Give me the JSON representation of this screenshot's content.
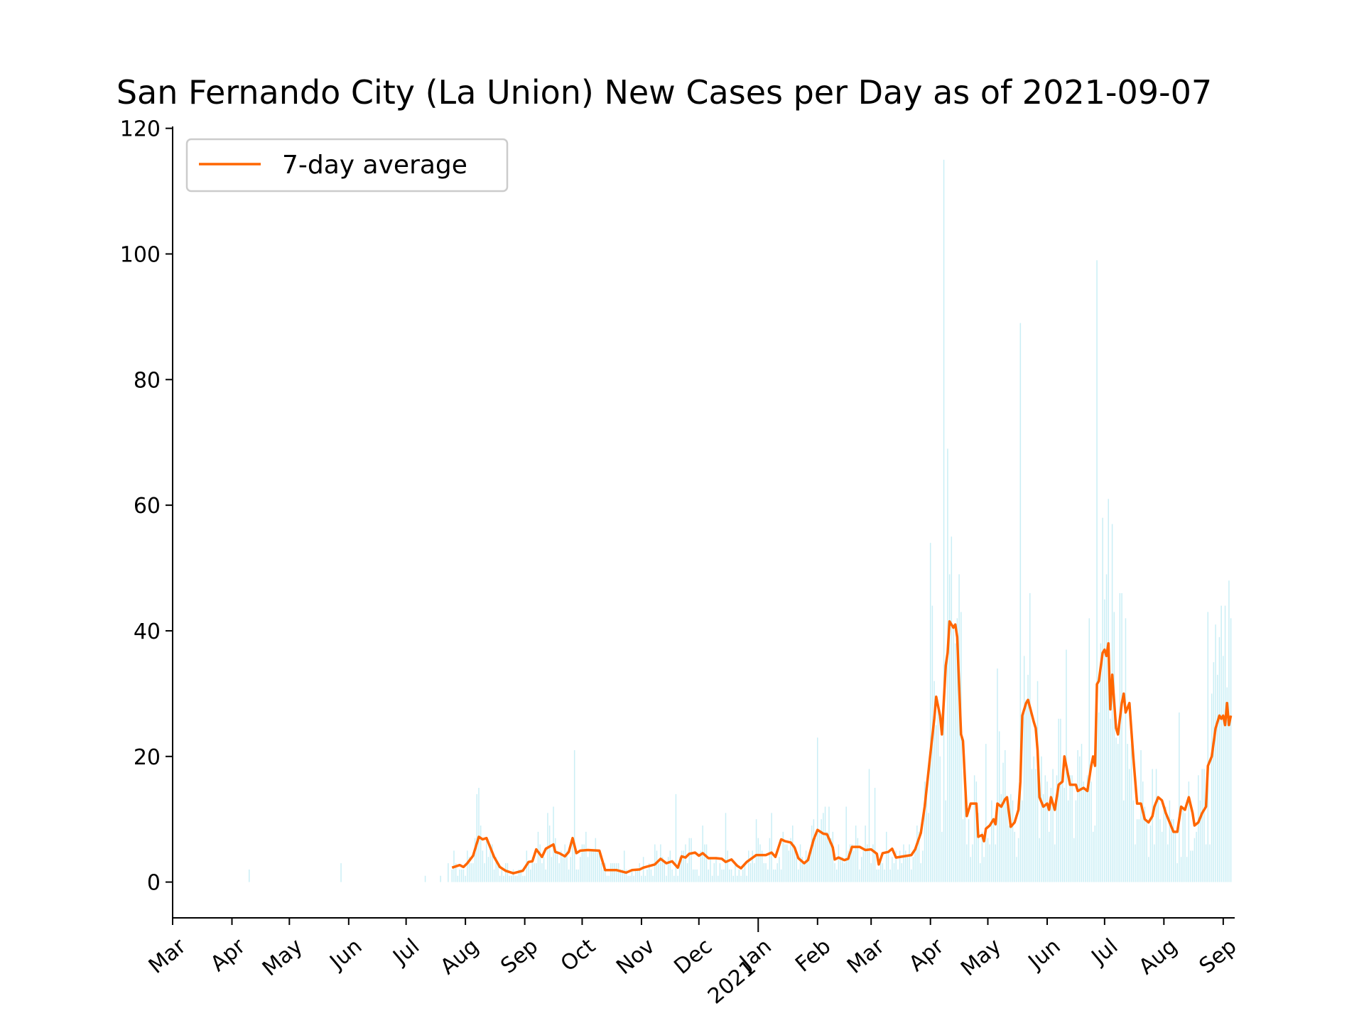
{
  "chart_data": {
    "type": "bar",
    "title": "San Fernando City (La Union) New Cases per Day as of 2021-09-07",
    "xlabel": "",
    "ylabel": "",
    "ylim": [
      -5.7,
      120.3
    ],
    "xlim": [
      "2020-03-01",
      "2021-09-07"
    ],
    "grid": false,
    "legend_position": "top-left",
    "y_ticks": [
      0,
      20,
      40,
      60,
      80,
      100,
      120
    ],
    "x_ticks": [
      {
        "date": "2020-03-01",
        "label": "Mar"
      },
      {
        "date": "2020-04-01",
        "label": "Apr"
      },
      {
        "date": "2020-05-01",
        "label": "May"
      },
      {
        "date": "2020-06-01",
        "label": "Jun"
      },
      {
        "date": "2020-07-01",
        "label": "Jul"
      },
      {
        "date": "2020-08-01",
        "label": "Aug"
      },
      {
        "date": "2020-09-01",
        "label": "Sep"
      },
      {
        "date": "2020-10-01",
        "label": "Oct"
      },
      {
        "date": "2020-11-01",
        "label": "Nov"
      },
      {
        "date": "2020-12-01",
        "label": "Dec"
      },
      {
        "date": "2021-01-01",
        "label": "Jan\n2021"
      },
      {
        "date": "2021-02-01",
        "label": "Feb"
      },
      {
        "date": "2021-03-01",
        "label": "Mar"
      },
      {
        "date": "2021-04-01",
        "label": "Apr"
      },
      {
        "date": "2021-05-01",
        "label": "May"
      },
      {
        "date": "2021-06-01",
        "label": "Jun"
      },
      {
        "date": "2021-07-01",
        "label": "Jul"
      },
      {
        "date": "2021-08-01",
        "label": "Aug"
      },
      {
        "date": "2021-09-01",
        "label": "Sep"
      }
    ],
    "colors": {
      "bars": "#c9eef5",
      "average": "#ff6600",
      "axis": "#000000",
      "legend_border": "#cccccc"
    },
    "series": [
      {
        "name": "7-day average",
        "type": "line",
        "points": [
          [
            "2020-07-25",
            2.3
          ],
          [
            "2020-07-29",
            2.7
          ],
          [
            "2020-07-31",
            2.4
          ],
          [
            "2020-08-02",
            3.0
          ],
          [
            "2020-08-05",
            4.2
          ],
          [
            "2020-08-08",
            7.2
          ],
          [
            "2020-08-10",
            6.8
          ],
          [
            "2020-08-12",
            7.0
          ],
          [
            "2020-08-14",
            5.5
          ],
          [
            "2020-08-16",
            4.0
          ],
          [
            "2020-08-19",
            2.4
          ],
          [
            "2020-08-22",
            1.8
          ],
          [
            "2020-08-26",
            1.4
          ],
          [
            "2020-08-31",
            1.8
          ],
          [
            "2020-09-03",
            3.2
          ],
          [
            "2020-09-05",
            3.3
          ],
          [
            "2020-09-07",
            5.2
          ],
          [
            "2020-09-10",
            4.0
          ],
          [
            "2020-09-12",
            5.3
          ],
          [
            "2020-09-16",
            6.0
          ],
          [
            "2020-09-17",
            4.8
          ],
          [
            "2020-09-19",
            4.6
          ],
          [
            "2020-09-22",
            4.1
          ],
          [
            "2020-09-24",
            4.8
          ],
          [
            "2020-09-26",
            7.0
          ],
          [
            "2020-09-28",
            4.6
          ],
          [
            "2020-09-30",
            5.0
          ],
          [
            "2020-10-04",
            5.1
          ],
          [
            "2020-10-10",
            5.0
          ],
          [
            "2020-10-13",
            1.9
          ],
          [
            "2020-10-19",
            1.9
          ],
          [
            "2020-10-24",
            1.5
          ],
          [
            "2020-10-27",
            1.9
          ],
          [
            "2020-10-31",
            2.0
          ],
          [
            "2020-11-02",
            2.3
          ],
          [
            "2020-11-08",
            2.8
          ],
          [
            "2020-11-11",
            3.7
          ],
          [
            "2020-11-14",
            3.0
          ],
          [
            "2020-11-17",
            3.3
          ],
          [
            "2020-11-20",
            2.3
          ],
          [
            "2020-11-22",
            4.1
          ],
          [
            "2020-11-24",
            3.9
          ],
          [
            "2020-11-26",
            4.5
          ],
          [
            "2020-11-29",
            4.7
          ],
          [
            "2020-12-01",
            4.2
          ],
          [
            "2020-12-03",
            4.6
          ],
          [
            "2020-12-06",
            3.8
          ],
          [
            "2020-12-10",
            3.8
          ],
          [
            "2020-12-13",
            3.7
          ],
          [
            "2020-12-15",
            3.2
          ],
          [
            "2020-12-18",
            3.6
          ],
          [
            "2020-12-21",
            2.6
          ],
          [
            "2020-12-23",
            2.2
          ],
          [
            "2020-12-26",
            3.2
          ],
          [
            "2020-12-31",
            4.3
          ],
          [
            "2021-01-05",
            4.3
          ],
          [
            "2021-01-08",
            4.7
          ],
          [
            "2021-01-10",
            4.0
          ],
          [
            "2021-01-13",
            6.8
          ],
          [
            "2021-01-15",
            6.5
          ],
          [
            "2021-01-18",
            6.3
          ],
          [
            "2021-01-20",
            5.5
          ],
          [
            "2021-01-22",
            3.8
          ],
          [
            "2021-01-25",
            3.0
          ],
          [
            "2021-01-27",
            3.5
          ],
          [
            "2021-01-30",
            6.8
          ],
          [
            "2021-02-01",
            8.3
          ],
          [
            "2021-02-04",
            7.7
          ],
          [
            "2021-02-06",
            7.6
          ],
          [
            "2021-02-09",
            5.5
          ],
          [
            "2021-02-10",
            3.6
          ],
          [
            "2021-02-12",
            3.9
          ],
          [
            "2021-02-15",
            3.5
          ],
          [
            "2021-02-17",
            3.7
          ],
          [
            "2021-02-19",
            5.6
          ],
          [
            "2021-02-23",
            5.6
          ],
          [
            "2021-02-26",
            5.1
          ],
          [
            "2021-03-01",
            5.2
          ],
          [
            "2021-03-04",
            4.5
          ],
          [
            "2021-03-05",
            2.8
          ],
          [
            "2021-03-07",
            4.6
          ],
          [
            "2021-03-10",
            4.8
          ],
          [
            "2021-03-12",
            5.3
          ],
          [
            "2021-03-14",
            3.9
          ],
          [
            "2021-03-18",
            4.1
          ],
          [
            "2021-03-22",
            4.3
          ],
          [
            "2021-03-24",
            5.2
          ],
          [
            "2021-03-27",
            7.8
          ],
          [
            "2021-03-29",
            12.0
          ],
          [
            "2021-04-01",
            20.5
          ],
          [
            "2021-04-03",
            26.0
          ],
          [
            "2021-04-04",
            29.5
          ],
          [
            "2021-04-06",
            26.5
          ],
          [
            "2021-04-07",
            23.5
          ],
          [
            "2021-04-09",
            34.5
          ],
          [
            "2021-04-10",
            36.5
          ],
          [
            "2021-04-11",
            41.5
          ],
          [
            "2021-04-13",
            40.5
          ],
          [
            "2021-04-14",
            41.0
          ],
          [
            "2021-04-15",
            39.0
          ],
          [
            "2021-04-17",
            23.5
          ],
          [
            "2021-04-18",
            22.5
          ],
          [
            "2021-04-20",
            10.5
          ],
          [
            "2021-04-21",
            11.5
          ],
          [
            "2021-04-22",
            12.5
          ],
          [
            "2021-04-25",
            12.5
          ],
          [
            "2021-04-26",
            7.2
          ],
          [
            "2021-04-28",
            7.5
          ],
          [
            "2021-04-29",
            6.5
          ],
          [
            "2021-04-30",
            8.5
          ],
          [
            "2021-05-02",
            9.0
          ],
          [
            "2021-05-04",
            10.0
          ],
          [
            "2021-05-05",
            9.2
          ],
          [
            "2021-05-06",
            12.5
          ],
          [
            "2021-05-08",
            12.0
          ],
          [
            "2021-05-10",
            13.2
          ],
          [
            "2021-05-11",
            13.5
          ],
          [
            "2021-05-13",
            8.8
          ],
          [
            "2021-05-15",
            9.5
          ],
          [
            "2021-05-17",
            11.5
          ],
          [
            "2021-05-18",
            16.0
          ],
          [
            "2021-05-19",
            26.5
          ],
          [
            "2021-05-21",
            28.5
          ],
          [
            "2021-05-22",
            29.0
          ],
          [
            "2021-05-25",
            25.5
          ],
          [
            "2021-05-26",
            24.5
          ],
          [
            "2021-05-27",
            21.0
          ],
          [
            "2021-05-28",
            13.5
          ],
          [
            "2021-05-30",
            12.0
          ],
          [
            "2021-06-01",
            12.5
          ],
          [
            "2021-06-02",
            11.5
          ],
          [
            "2021-06-03",
            13.5
          ],
          [
            "2021-06-05",
            11.5
          ],
          [
            "2021-06-07",
            15.5
          ],
          [
            "2021-06-09",
            16.0
          ],
          [
            "2021-06-10",
            20.0
          ],
          [
            "2021-06-12",
            17.0
          ],
          [
            "2021-06-13",
            15.5
          ],
          [
            "2021-06-16",
            15.5
          ],
          [
            "2021-06-17",
            14.5
          ],
          [
            "2021-06-20",
            15.0
          ],
          [
            "2021-06-22",
            14.5
          ],
          [
            "2021-06-24",
            18.5
          ],
          [
            "2021-06-25",
            20.0
          ],
          [
            "2021-06-26",
            18.5
          ],
          [
            "2021-06-27",
            31.5
          ],
          [
            "2021-06-28",
            32.0
          ],
          [
            "2021-06-30",
            36.5
          ],
          [
            "2021-07-01",
            37.0
          ],
          [
            "2021-07-02",
            36.0
          ],
          [
            "2021-07-03",
            38.0
          ],
          [
            "2021-07-04",
            27.5
          ],
          [
            "2021-07-05",
            33.0
          ],
          [
            "2021-07-07",
            24.5
          ],
          [
            "2021-07-08",
            23.5
          ],
          [
            "2021-07-10",
            28.5
          ],
          [
            "2021-07-11",
            30.0
          ],
          [
            "2021-07-12",
            27.0
          ],
          [
            "2021-07-14",
            28.5
          ],
          [
            "2021-07-16",
            20.0
          ],
          [
            "2021-07-18",
            12.5
          ],
          [
            "2021-07-20",
            12.5
          ],
          [
            "2021-07-22",
            10.0
          ],
          [
            "2021-07-24",
            9.5
          ],
          [
            "2021-07-26",
            10.5
          ],
          [
            "2021-07-27",
            12.0
          ],
          [
            "2021-07-29",
            13.5
          ],
          [
            "2021-07-31",
            13.0
          ],
          [
            "2021-08-02",
            11.0
          ],
          [
            "2021-08-04",
            9.5
          ],
          [
            "2021-08-06",
            8.0
          ],
          [
            "2021-08-08",
            8.0
          ],
          [
            "2021-08-10",
            12.0
          ],
          [
            "2021-08-12",
            11.5
          ],
          [
            "2021-08-14",
            13.5
          ],
          [
            "2021-08-16",
            11.0
          ],
          [
            "2021-08-17",
            9.0
          ],
          [
            "2021-08-19",
            9.5
          ],
          [
            "2021-08-21",
            11.0
          ],
          [
            "2021-08-23",
            12.0
          ],
          [
            "2021-08-24",
            18.5
          ],
          [
            "2021-08-26",
            20.0
          ],
          [
            "2021-08-28",
            24.5
          ],
          [
            "2021-08-30",
            26.5
          ],
          [
            "2021-08-31",
            26.0
          ],
          [
            "2021-09-01",
            26.5
          ],
          [
            "2021-09-02",
            25.0
          ],
          [
            "2021-09-03",
            28.5
          ],
          [
            "2021-09-04",
            25.0
          ],
          [
            "2021-09-05",
            26.5
          ]
        ]
      },
      {
        "name": "",
        "type": "bar",
        "note_spikes": [
          [
            "2020-04-10",
            2
          ],
          [
            "2020-05-28",
            3
          ],
          [
            "2020-07-11",
            1
          ],
          [
            "2020-07-19",
            1
          ],
          [
            "2020-07-23",
            3
          ],
          [
            "2020-07-26",
            5
          ],
          [
            "2020-08-07",
            14
          ],
          [
            "2020-08-08",
            15
          ],
          [
            "2020-08-10",
            5
          ],
          [
            "2020-08-14",
            6
          ],
          [
            "2020-08-20",
            2
          ],
          [
            "2020-09-08",
            8
          ],
          [
            "2020-09-13",
            11
          ],
          [
            "2020-09-16",
            12
          ],
          [
            "2020-09-27",
            21
          ],
          [
            "2020-10-23",
            5
          ],
          [
            "2020-11-08",
            6
          ],
          [
            "2020-11-19",
            14
          ],
          [
            "2020-11-26",
            7
          ],
          [
            "2020-12-03",
            9
          ],
          [
            "2020-12-15",
            11
          ],
          [
            "2020-12-31",
            10
          ],
          [
            "2021-01-08",
            11
          ],
          [
            "2021-01-16",
            6
          ],
          [
            "2021-02-01",
            23
          ],
          [
            "2021-02-16",
            12
          ],
          [
            "2021-02-28",
            18
          ],
          [
            "2021-03-03",
            15
          ],
          [
            "2021-03-29",
            16
          ],
          [
            "2021-04-01",
            54
          ],
          [
            "2021-04-02",
            44
          ],
          [
            "2021-04-03",
            32
          ],
          [
            "2021-04-08",
            115
          ],
          [
            "2021-04-10",
            69
          ],
          [
            "2021-04-11",
            49
          ],
          [
            "2021-04-13",
            41
          ],
          [
            "2021-04-17",
            43
          ],
          [
            "2021-04-24",
            17
          ],
          [
            "2021-04-30",
            22
          ],
          [
            "2021-05-06",
            34
          ],
          [
            "2021-05-07",
            24
          ],
          [
            "2021-05-11",
            12
          ],
          [
            "2021-05-18",
            89
          ],
          [
            "2021-05-21",
            29
          ],
          [
            "2021-05-27",
            32
          ],
          [
            "2021-06-04",
            18
          ],
          [
            "2021-06-08",
            26
          ],
          [
            "2021-06-11",
            37
          ],
          [
            "2021-06-19",
            22
          ],
          [
            "2021-06-23",
            42
          ],
          [
            "2021-06-27",
            99
          ],
          [
            "2021-06-29",
            38
          ],
          [
            "2021-07-01",
            45
          ],
          [
            "2021-07-05",
            57
          ],
          [
            "2021-07-07",
            23
          ],
          [
            "2021-07-09",
            46
          ],
          [
            "2021-07-10",
            46
          ],
          [
            "2021-07-15",
            22
          ],
          [
            "2021-07-26",
            18
          ],
          [
            "2021-07-28",
            18
          ],
          [
            "2021-08-04",
            13
          ],
          [
            "2021-08-09",
            27
          ],
          [
            "2021-08-19",
            17
          ],
          [
            "2021-08-24",
            43
          ],
          [
            "2021-08-27",
            35
          ],
          [
            "2021-08-29",
            33
          ],
          [
            "2021-08-31",
            44
          ],
          [
            "2021-09-02",
            44
          ],
          [
            "2021-09-04",
            48
          ]
        ]
      }
    ]
  }
}
